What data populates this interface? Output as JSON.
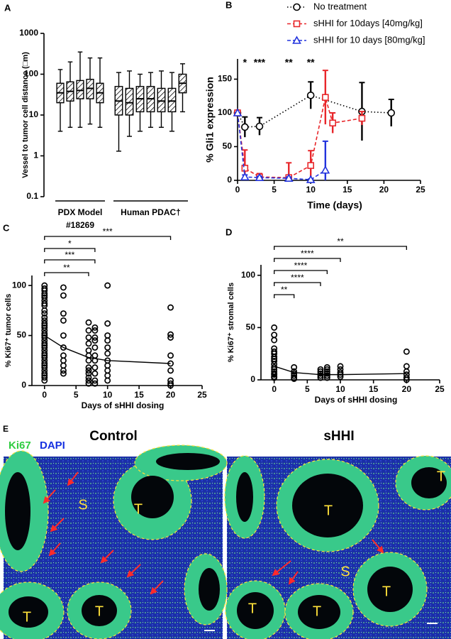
{
  "chart_data": [
    {
      "panel": "A",
      "type": "box",
      "ylabel": "Vessel to tumor cell distance (□m)",
      "log_scale": true,
      "ylim": [
        0.1,
        1000
      ],
      "yticks": [
        0.1,
        1,
        10,
        100,
        1000
      ],
      "groups": [
        {
          "label": [
            "PDX Model",
            "#18269"
          ],
          "boxes": [
            {
              "min": 4,
              "q1": 20,
              "median": 35,
              "q3": 60,
              "max": 130
            },
            {
              "min": 5,
              "q1": 22,
              "median": 38,
              "q3": 65,
              "max": 200
            },
            {
              "min": 5,
              "q1": 25,
              "median": 40,
              "q3": 70,
              "max": 350
            },
            {
              "min": 6,
              "q1": 25,
              "median": 45,
              "q3": 75,
              "max": 250
            },
            {
              "min": 5,
              "q1": 20,
              "median": 35,
              "q3": 60,
              "max": 250
            }
          ]
        },
        {
          "label": [
            "Human PDAC†"
          ],
          "boxes": [
            {
              "min": 1.3,
              "q1": 10,
              "median": 22,
              "q3": 50,
              "max": 110
            },
            {
              "min": 3,
              "q1": 10,
              "median": 20,
              "q3": 45,
              "max": 120
            },
            {
              "min": 4,
              "q1": 12,
              "median": 25,
              "q3": 50,
              "max": 100
            },
            {
              "min": 5,
              "q1": 12,
              "median": 25,
              "q3": 50,
              "max": 110
            },
            {
              "min": 5,
              "q1": 12,
              "median": 22,
              "q3": 45,
              "max": 120
            },
            {
              "min": 4,
              "q1": 12,
              "median": 22,
              "q3": 45,
              "max": 110
            },
            {
              "min": 12,
              "q1": 35,
              "median": 60,
              "q3": 100,
              "max": 180
            }
          ]
        }
      ]
    },
    {
      "panel": "B",
      "type": "line",
      "xlabel": "Time (days)",
      "ylabel": "% Gli1 expression",
      "xlim": [
        0,
        25
      ],
      "xticks": [
        0,
        5,
        10,
        15,
        20,
        25
      ],
      "ylim": [
        0,
        180
      ],
      "yticks": [
        0,
        50,
        100,
        150
      ],
      "series": [
        {
          "name": "No treatment",
          "color": "#000000",
          "marker": "circle",
          "dash": "dotted",
          "x": [
            0,
            1,
            3,
            10,
            17,
            21
          ],
          "values": [
            100,
            79,
            80,
            126,
            102,
            100
          ],
          "errors": [
            0,
            15,
            13,
            20,
            43,
            20
          ]
        },
        {
          "name": "sHHI for 10days [40mg/kg]",
          "color": "#e8262a",
          "marker": "square",
          "dash": "dashed",
          "x": [
            0,
            1,
            3,
            7,
            10,
            12,
            13,
            17
          ],
          "values": [
            100,
            18,
            5,
            4,
            22,
            123,
            85,
            92
          ],
          "errors": [
            0,
            27,
            5,
            22,
            22,
            40,
            15,
            10
          ]
        },
        {
          "name": "sHHI for 10 days [80mg/kg]",
          "color": "#2233dd",
          "marker": "triangle",
          "dash": "dashed",
          "x": [
            0,
            1,
            3,
            7,
            10,
            12
          ],
          "values": [
            100,
            5,
            4,
            3,
            1,
            15
          ],
          "errors": [
            0,
            3,
            2,
            2,
            1,
            43
          ]
        }
      ],
      "annotations": [
        {
          "x": 1,
          "label": "*"
        },
        {
          "x": 3,
          "label": "***"
        },
        {
          "x": 7,
          "label": "**"
        },
        {
          "x": 10,
          "label": "**"
        }
      ]
    },
    {
      "panel": "C",
      "type": "scatter",
      "xlabel": "Days of sHHI dosing",
      "ylabel": "% Ki67⁺ tumor cells",
      "xlim": [
        -2,
        25
      ],
      "xticks": [
        0,
        5,
        10,
        15,
        20,
        25
      ],
      "ylim": [
        0,
        110
      ],
      "yticks": [
        0,
        50,
        100
      ],
      "points": {
        "x": [
          0,
          0,
          0,
          0,
          0,
          0,
          0,
          0,
          0,
          0,
          0,
          0,
          0,
          0,
          0,
          0,
          0,
          0,
          0,
          0,
          0,
          0,
          0,
          0,
          0,
          0,
          0,
          0,
          0,
          0,
          0,
          0,
          0,
          0,
          0,
          0,
          0,
          3,
          3,
          3,
          3,
          3,
          3,
          3,
          3,
          3,
          3,
          3,
          7,
          7,
          7,
          7,
          7,
          7,
          7,
          7,
          7,
          7,
          7,
          7,
          7,
          8,
          8,
          8,
          8,
          8,
          8,
          8,
          8,
          8,
          8,
          8,
          10,
          10,
          10,
          10,
          10,
          10,
          10,
          10,
          10,
          10,
          10,
          20,
          20,
          20,
          20,
          20,
          20,
          20,
          20,
          20
        ],
        "y": [
          100,
          97,
          95,
          92,
          90,
          88,
          85,
          82,
          80,
          75,
          72,
          68,
          65,
          62,
          60,
          58,
          55,
          52,
          50,
          48,
          45,
          42,
          40,
          38,
          35,
          32,
          30,
          28,
          25,
          22,
          20,
          18,
          15,
          12,
          10,
          8,
          5,
          98,
          90,
          72,
          65,
          50,
          38,
          30,
          25,
          20,
          15,
          12,
          63,
          55,
          48,
          42,
          35,
          30,
          25,
          18,
          15,
          12,
          8,
          5,
          2,
          58,
          55,
          48,
          45,
          38,
          30,
          25,
          18,
          12,
          5,
          2,
          100,
          62,
          50,
          45,
          38,
          32,
          25,
          20,
          15,
          10,
          5,
          78,
          51,
          48,
          30,
          22,
          15,
          5,
          2,
          0
        ]
      },
      "mean_line": {
        "x": [
          0,
          3,
          7,
          8,
          10,
          20
        ],
        "y": [
          50,
          38,
          28,
          27,
          25,
          22
        ]
      },
      "brackets": [
        {
          "x": [
            0,
            20
          ],
          "label": "***"
        },
        {
          "x": [
            0,
            8
          ],
          "label": "*"
        },
        {
          "x": [
            0,
            8
          ],
          "label": "***"
        },
        {
          "x": [
            0,
            7
          ],
          "label": "**"
        }
      ]
    },
    {
      "panel": "D",
      "type": "scatter",
      "xlabel": "Days of sHHI dosing",
      "ylabel": "% Ki67⁺ stromal cells",
      "xlim": [
        -2,
        25
      ],
      "xticks": [
        0,
        5,
        10,
        15,
        20,
        25
      ],
      "ylim": [
        0,
        110
      ],
      "yticks": [
        0,
        50,
        100
      ],
      "points": {
        "x": [
          0,
          0,
          0,
          0,
          0,
          0,
          0,
          0,
          0,
          0,
          0,
          0,
          0,
          0,
          0,
          0,
          0,
          3,
          3,
          3,
          3,
          3,
          3,
          7,
          7,
          7,
          7,
          7,
          8,
          8,
          8,
          8,
          8,
          8,
          10,
          10,
          10,
          10,
          10,
          20,
          20,
          20,
          20,
          20,
          20
        ],
        "y": [
          50,
          43,
          38,
          30,
          27,
          25,
          22,
          20,
          18,
          15,
          12,
          10,
          8,
          6,
          5,
          3,
          2,
          12,
          8,
          6,
          4,
          2,
          1,
          10,
          8,
          6,
          4,
          2,
          12,
          10,
          8,
          6,
          4,
          2,
          13,
          10,
          7,
          5,
          3,
          27,
          13,
          8,
          5,
          2,
          0
        ]
      },
      "mean_line": {
        "x": [
          0,
          3,
          7,
          8,
          10,
          20
        ],
        "y": [
          13,
          7,
          5,
          5,
          5,
          6
        ]
      },
      "brackets": [
        {
          "x": [
            0,
            20
          ],
          "label": "**"
        },
        {
          "x": [
            0,
            10
          ],
          "label": "****"
        },
        {
          "x": [
            0,
            8
          ],
          "label": "****"
        },
        {
          "x": [
            0,
            7
          ],
          "label": "****"
        },
        {
          "x": [
            0,
            3
          ],
          "label": "**"
        }
      ]
    }
  ],
  "panel_e": {
    "panel": "E",
    "stains": [
      "Ki67",
      "DAPI"
    ],
    "titles": [
      "Control",
      "sHHI"
    ],
    "region_labels": [
      [
        "S",
        "T",
        "T",
        "T"
      ],
      [
        "T",
        "T",
        "S",
        "T",
        "T",
        "T"
      ]
    ]
  }
}
